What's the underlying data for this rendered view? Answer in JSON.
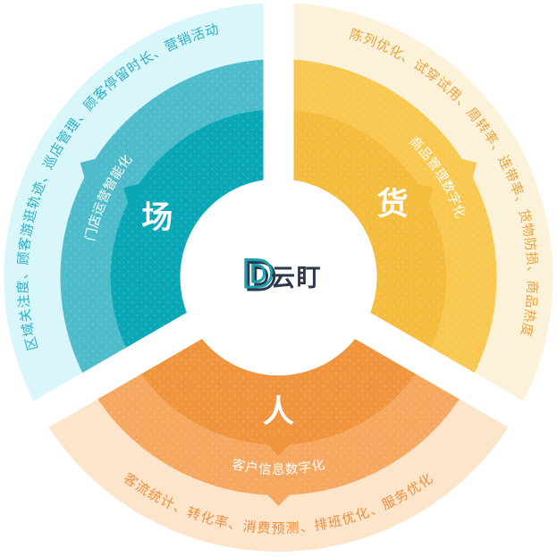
{
  "canvas": {
    "background": "#ffffff"
  },
  "logo": {
    "d": "D",
    "wordmark": "云盯",
    "d_color": "#1a9fae",
    "d_shadow_color": "#2c3a4c",
    "wordmark_color": "#2c3a4c"
  },
  "segments": {
    "chang": {
      "core_label": "场",
      "mid_label": "门店运营智能化",
      "outer_label": "区域关注度、顾客游逛轨迹、巡店管理、顾客停留时长、营销活动",
      "colors": {
        "inner": "#0aa7b7",
        "mid": "#4ebcca",
        "outer": "#d9f6fb",
        "outer_text": "#2cb0c7"
      }
    },
    "huo": {
      "core_label": "货",
      "mid_label": "商品管理数字化",
      "outer_label": "陈列优化、试穿试用、周转率、连带率、货物防损、商品热度",
      "colors": {
        "inner": "#f4bd3e",
        "mid": "#f8c850",
        "outer": "#fcf2d9",
        "outer_text": "#eaa43e"
      }
    },
    "ren": {
      "core_label": "人",
      "mid_label": "客户信息数字化",
      "outer_label": "客流统计、转化率、消费预测、排班优化、服务优化",
      "colors": {
        "inner": "#f0953e",
        "mid": "#f6a860",
        "outer": "#fce5ca",
        "outer_text": "#ee8f3d"
      }
    }
  }
}
